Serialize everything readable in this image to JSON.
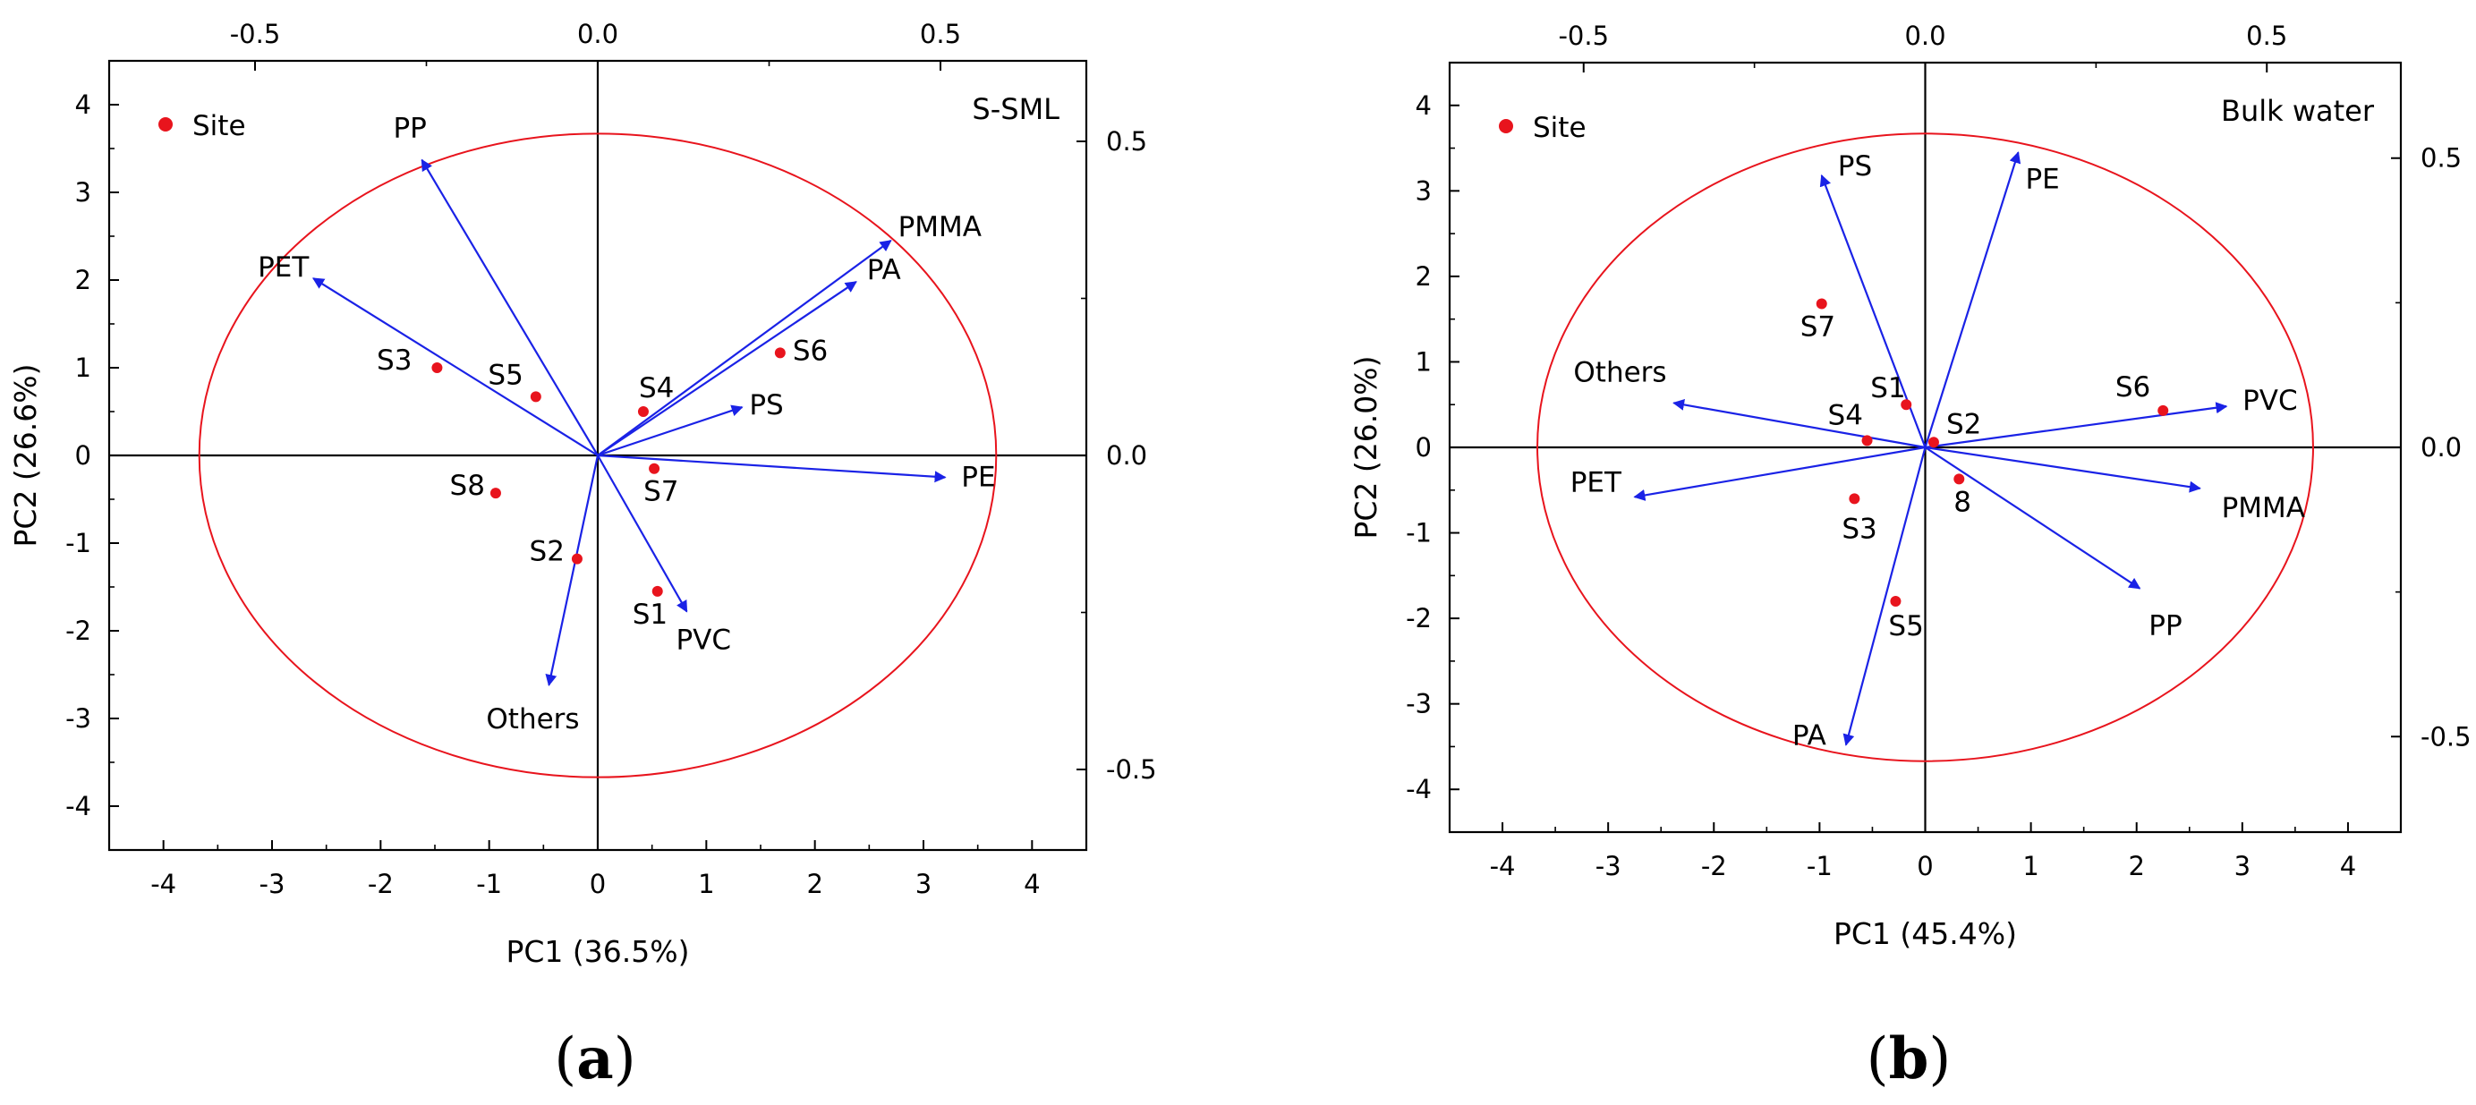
{
  "chart_data": [
    {
      "type": "scatter",
      "subtype": "pca-biplot",
      "panel_label": "a",
      "title": "S-SML",
      "xlabel": "PC1 (36.5%)",
      "ylabel": "PC2 (26.6%)",
      "xlim": [
        -4.5,
        4.5
      ],
      "ylim": [
        -4.5,
        4.5
      ],
      "xticks": [
        -4,
        -3,
        -2,
        -1,
        0,
        1,
        2,
        3,
        4
      ],
      "yticks": [
        -4,
        -3,
        -2,
        -1,
        0,
        1,
        2,
        3,
        4
      ],
      "x_tick_labels": [
        "-4",
        "-3",
        "-2",
        "-1",
        "0",
        "1",
        "2",
        "3",
        "4"
      ],
      "y_tick_labels": [
        "-4",
        "-3",
        "-2",
        "-1",
        "0",
        "1",
        "2",
        "3",
        "4"
      ],
      "top_axis": {
        "ticks": [
          -0.5,
          0.0,
          0.5
        ],
        "labels": [
          "-0.5",
          "0.0",
          "0.5"
        ],
        "scale_per_unit": 0.1584
      },
      "right_axis": {
        "ticks": [
          0.5,
          0.0,
          -0.5
        ],
        "labels": [
          "0.5",
          "0.0",
          "-0.5"
        ],
        "scale_per_unit": 0.1396
      },
      "circle": {
        "rx": 3.67,
        "ry": 3.67,
        "color": "#e8141d"
      },
      "legend": {
        "label": "Site",
        "color": "#e8141d",
        "position": "top-left"
      },
      "points": [
        {
          "name": "S3",
          "x": -1.48,
          "y": 1.0
        },
        {
          "name": "S5",
          "x": -0.57,
          "y": 0.67
        },
        {
          "name": "S4",
          "x": 0.42,
          "y": 0.5
        },
        {
          "name": "S6",
          "x": 1.68,
          "y": 1.17
        },
        {
          "name": "S8",
          "x": -0.94,
          "y": -0.43
        },
        {
          "name": "S7",
          "x": 0.52,
          "y": -0.15
        },
        {
          "name": "S2",
          "x": -0.19,
          "y": -1.18
        },
        {
          "name": "S1",
          "x": 0.55,
          "y": -1.55
        }
      ],
      "vectors": [
        {
          "name": "PP",
          "x": -1.62,
          "y": 3.37
        },
        {
          "name": "PET",
          "x": -2.62,
          "y": 2.02
        },
        {
          "name": "PMMA",
          "x": 2.7,
          "y": 2.45
        },
        {
          "name": "PA",
          "x": 2.38,
          "y": 1.98
        },
        {
          "name": "PS",
          "x": 1.33,
          "y": 0.55
        },
        {
          "name": "PE",
          "x": 3.2,
          "y": -0.25
        },
        {
          "name": "PVC",
          "x": 0.82,
          "y": -1.78
        },
        {
          "name": "Others",
          "x": -0.45,
          "y": -2.62
        }
      ]
    },
    {
      "type": "scatter",
      "subtype": "pca-biplot",
      "panel_label": "b",
      "title": "Bulk water",
      "xlabel": "PC1 (45.4%)",
      "ylabel": "PC2 (26.0%)",
      "xlim": [
        -4.5,
        4.5
      ],
      "ylim": [
        -4.5,
        4.5
      ],
      "xticks": [
        -4,
        -3,
        -2,
        -1,
        0,
        1,
        2,
        3,
        4
      ],
      "yticks": [
        -4,
        -3,
        -2,
        -1,
        0,
        1,
        2,
        3,
        4
      ],
      "x_tick_labels": [
        "-4",
        "-3",
        "-2",
        "-1",
        "0",
        "1",
        "2",
        "3",
        "4"
      ],
      "y_tick_labels": [
        "-4",
        "-3",
        "-2",
        "-1",
        "0",
        "1",
        "2",
        "3",
        "4"
      ],
      "top_axis": {
        "ticks": [
          -0.5,
          0.0,
          0.5
        ],
        "labels": [
          "-0.5",
          "0.0",
          "0.5"
        ],
        "scale_per_unit": 0.1547
      },
      "right_axis": {
        "ticks": [
          0.5,
          0.0,
          -0.5
        ],
        "labels": [
          "0.5",
          "0.0",
          "-0.5"
        ],
        "scale_per_unit": 0.1478
      },
      "circle": {
        "rx": 3.67,
        "ry": 3.67,
        "color": "#e8141d"
      },
      "legend": {
        "label": "Site",
        "color": "#e8141d",
        "position": "top-left"
      },
      "points": [
        {
          "name": "S7",
          "x": -0.98,
          "y": 1.68
        },
        {
          "name": "S1",
          "x": -0.18,
          "y": 0.5
        },
        {
          "name": "S4",
          "x": -0.55,
          "y": 0.08
        },
        {
          "name": "S2",
          "x": 0.08,
          "y": 0.06
        },
        {
          "name": "S6",
          "x": 2.25,
          "y": 0.43
        },
        {
          "name": "8",
          "x": 0.32,
          "y": -0.37
        },
        {
          "name": "S3",
          "x": -0.67,
          "y": -0.6
        },
        {
          "name": "S5",
          "x": -0.28,
          "y": -1.8
        }
      ],
      "vectors": [
        {
          "name": "PS",
          "x": -0.98,
          "y": 3.18
        },
        {
          "name": "PE",
          "x": 0.88,
          "y": 3.45
        },
        {
          "name": "Others",
          "x": -2.38,
          "y": 0.52
        },
        {
          "name": "PET",
          "x": -2.75,
          "y": -0.58
        },
        {
          "name": "PVC",
          "x": 2.85,
          "y": 0.48
        },
        {
          "name": "PMMA",
          "x": 2.6,
          "y": -0.48
        },
        {
          "name": "PP",
          "x": 2.03,
          "y": -1.65
        },
        {
          "name": "PA",
          "x": -0.75,
          "y": -3.48
        }
      ]
    }
  ]
}
